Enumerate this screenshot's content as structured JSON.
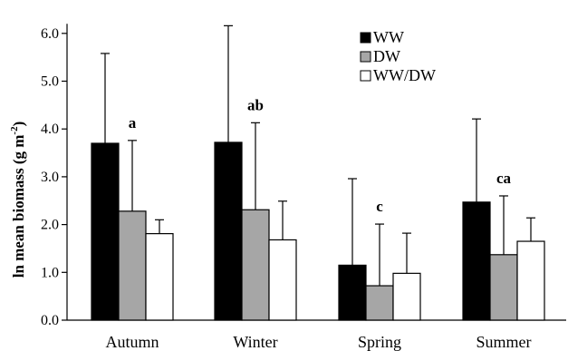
{
  "chart_data": {
    "type": "bar",
    "ylabel_main": "ln mean biomass (g m",
    "ylabel_sup": "-2",
    "ylabel_close": ")",
    "ylim": [
      0,
      6.2
    ],
    "yticks": [
      "0.0",
      "1.0",
      "2.0",
      "3.0",
      "4.0",
      "5.0",
      "6.0"
    ],
    "categories": [
      "Autumn",
      "Winter",
      "Spring",
      "Summer"
    ],
    "series": [
      {
        "name": "WW",
        "color": "#000000",
        "values": [
          3.7,
          3.72,
          1.15,
          2.47
        ],
        "error_upper": [
          5.58,
          6.16,
          2.96,
          4.21
        ]
      },
      {
        "name": "DW",
        "color": "#a6a6a6",
        "values": [
          2.28,
          2.31,
          0.72,
          1.37
        ],
        "error_upper": [
          3.76,
          4.13,
          2.01,
          2.6
        ]
      },
      {
        "name": "WW/DW",
        "color": "#ffffff",
        "values": [
          1.81,
          1.68,
          0.98,
          1.65
        ],
        "error_upper": [
          2.1,
          2.49,
          1.82,
          2.14
        ]
      }
    ],
    "significance_labels": [
      "a",
      "ab",
      "c",
      "ca"
    ],
    "legend_position": "top-right",
    "grid": false
  }
}
